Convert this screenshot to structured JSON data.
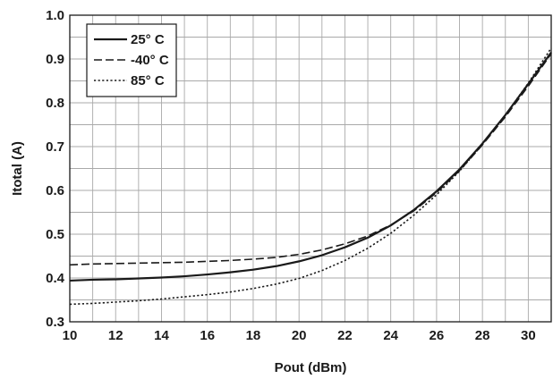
{
  "chart_data": {
    "type": "line",
    "xlabel": "Pout (dBm)",
    "ylabel": "Itotal (A)",
    "xlim": [
      10,
      31
    ],
    "ylim": [
      0.3,
      1.0
    ],
    "x_ticks": [
      "10",
      "12",
      "14",
      "16",
      "18",
      "20",
      "22",
      "24",
      "26",
      "28",
      "30"
    ],
    "y_ticks": [
      "0.3",
      "0.4",
      "0.5",
      "0.6",
      "0.7",
      "0.8",
      "0.9",
      "1.0"
    ],
    "grid": true,
    "legend_position": "top-left",
    "series": [
      {
        "name": "25° C",
        "style": "solid",
        "color": "#1a1a1a",
        "x": [
          10,
          11,
          12,
          13,
          14,
          15,
          16,
          17,
          18,
          19,
          20,
          21,
          22,
          23,
          24,
          25,
          26,
          27,
          28,
          29,
          30,
          31
        ],
        "y": [
          0.394,
          0.396,
          0.397,
          0.399,
          0.401,
          0.404,
          0.408,
          0.413,
          0.419,
          0.427,
          0.438,
          0.452,
          0.47,
          0.492,
          0.52,
          0.555,
          0.598,
          0.648,
          0.707,
          0.772,
          0.843,
          0.915
        ]
      },
      {
        "name": "-40° C",
        "style": "dashed",
        "color": "#1a1a1a",
        "x": [
          10,
          11,
          12,
          13,
          14,
          15,
          16,
          17,
          18,
          19,
          20,
          21,
          22,
          23,
          24,
          25,
          26,
          27,
          28,
          29,
          30,
          31
        ],
        "y": [
          0.43,
          0.432,
          0.433,
          0.434,
          0.435,
          0.436,
          0.438,
          0.44,
          0.443,
          0.447,
          0.454,
          0.464,
          0.478,
          0.496,
          0.521,
          0.553,
          0.595,
          0.645,
          0.704,
          0.768,
          0.838,
          0.912
        ]
      },
      {
        "name": "85° C",
        "style": "dotted",
        "color": "#1a1a1a",
        "x": [
          10,
          11,
          12,
          13,
          14,
          15,
          16,
          17,
          18,
          19,
          20,
          21,
          22,
          23,
          24,
          25,
          26,
          27,
          28,
          29,
          30,
          31
        ],
        "y": [
          0.34,
          0.342,
          0.345,
          0.348,
          0.352,
          0.357,
          0.362,
          0.368,
          0.376,
          0.386,
          0.399,
          0.417,
          0.44,
          0.468,
          0.502,
          0.543,
          0.59,
          0.644,
          0.705,
          0.772,
          0.845,
          0.925
        ]
      }
    ]
  }
}
